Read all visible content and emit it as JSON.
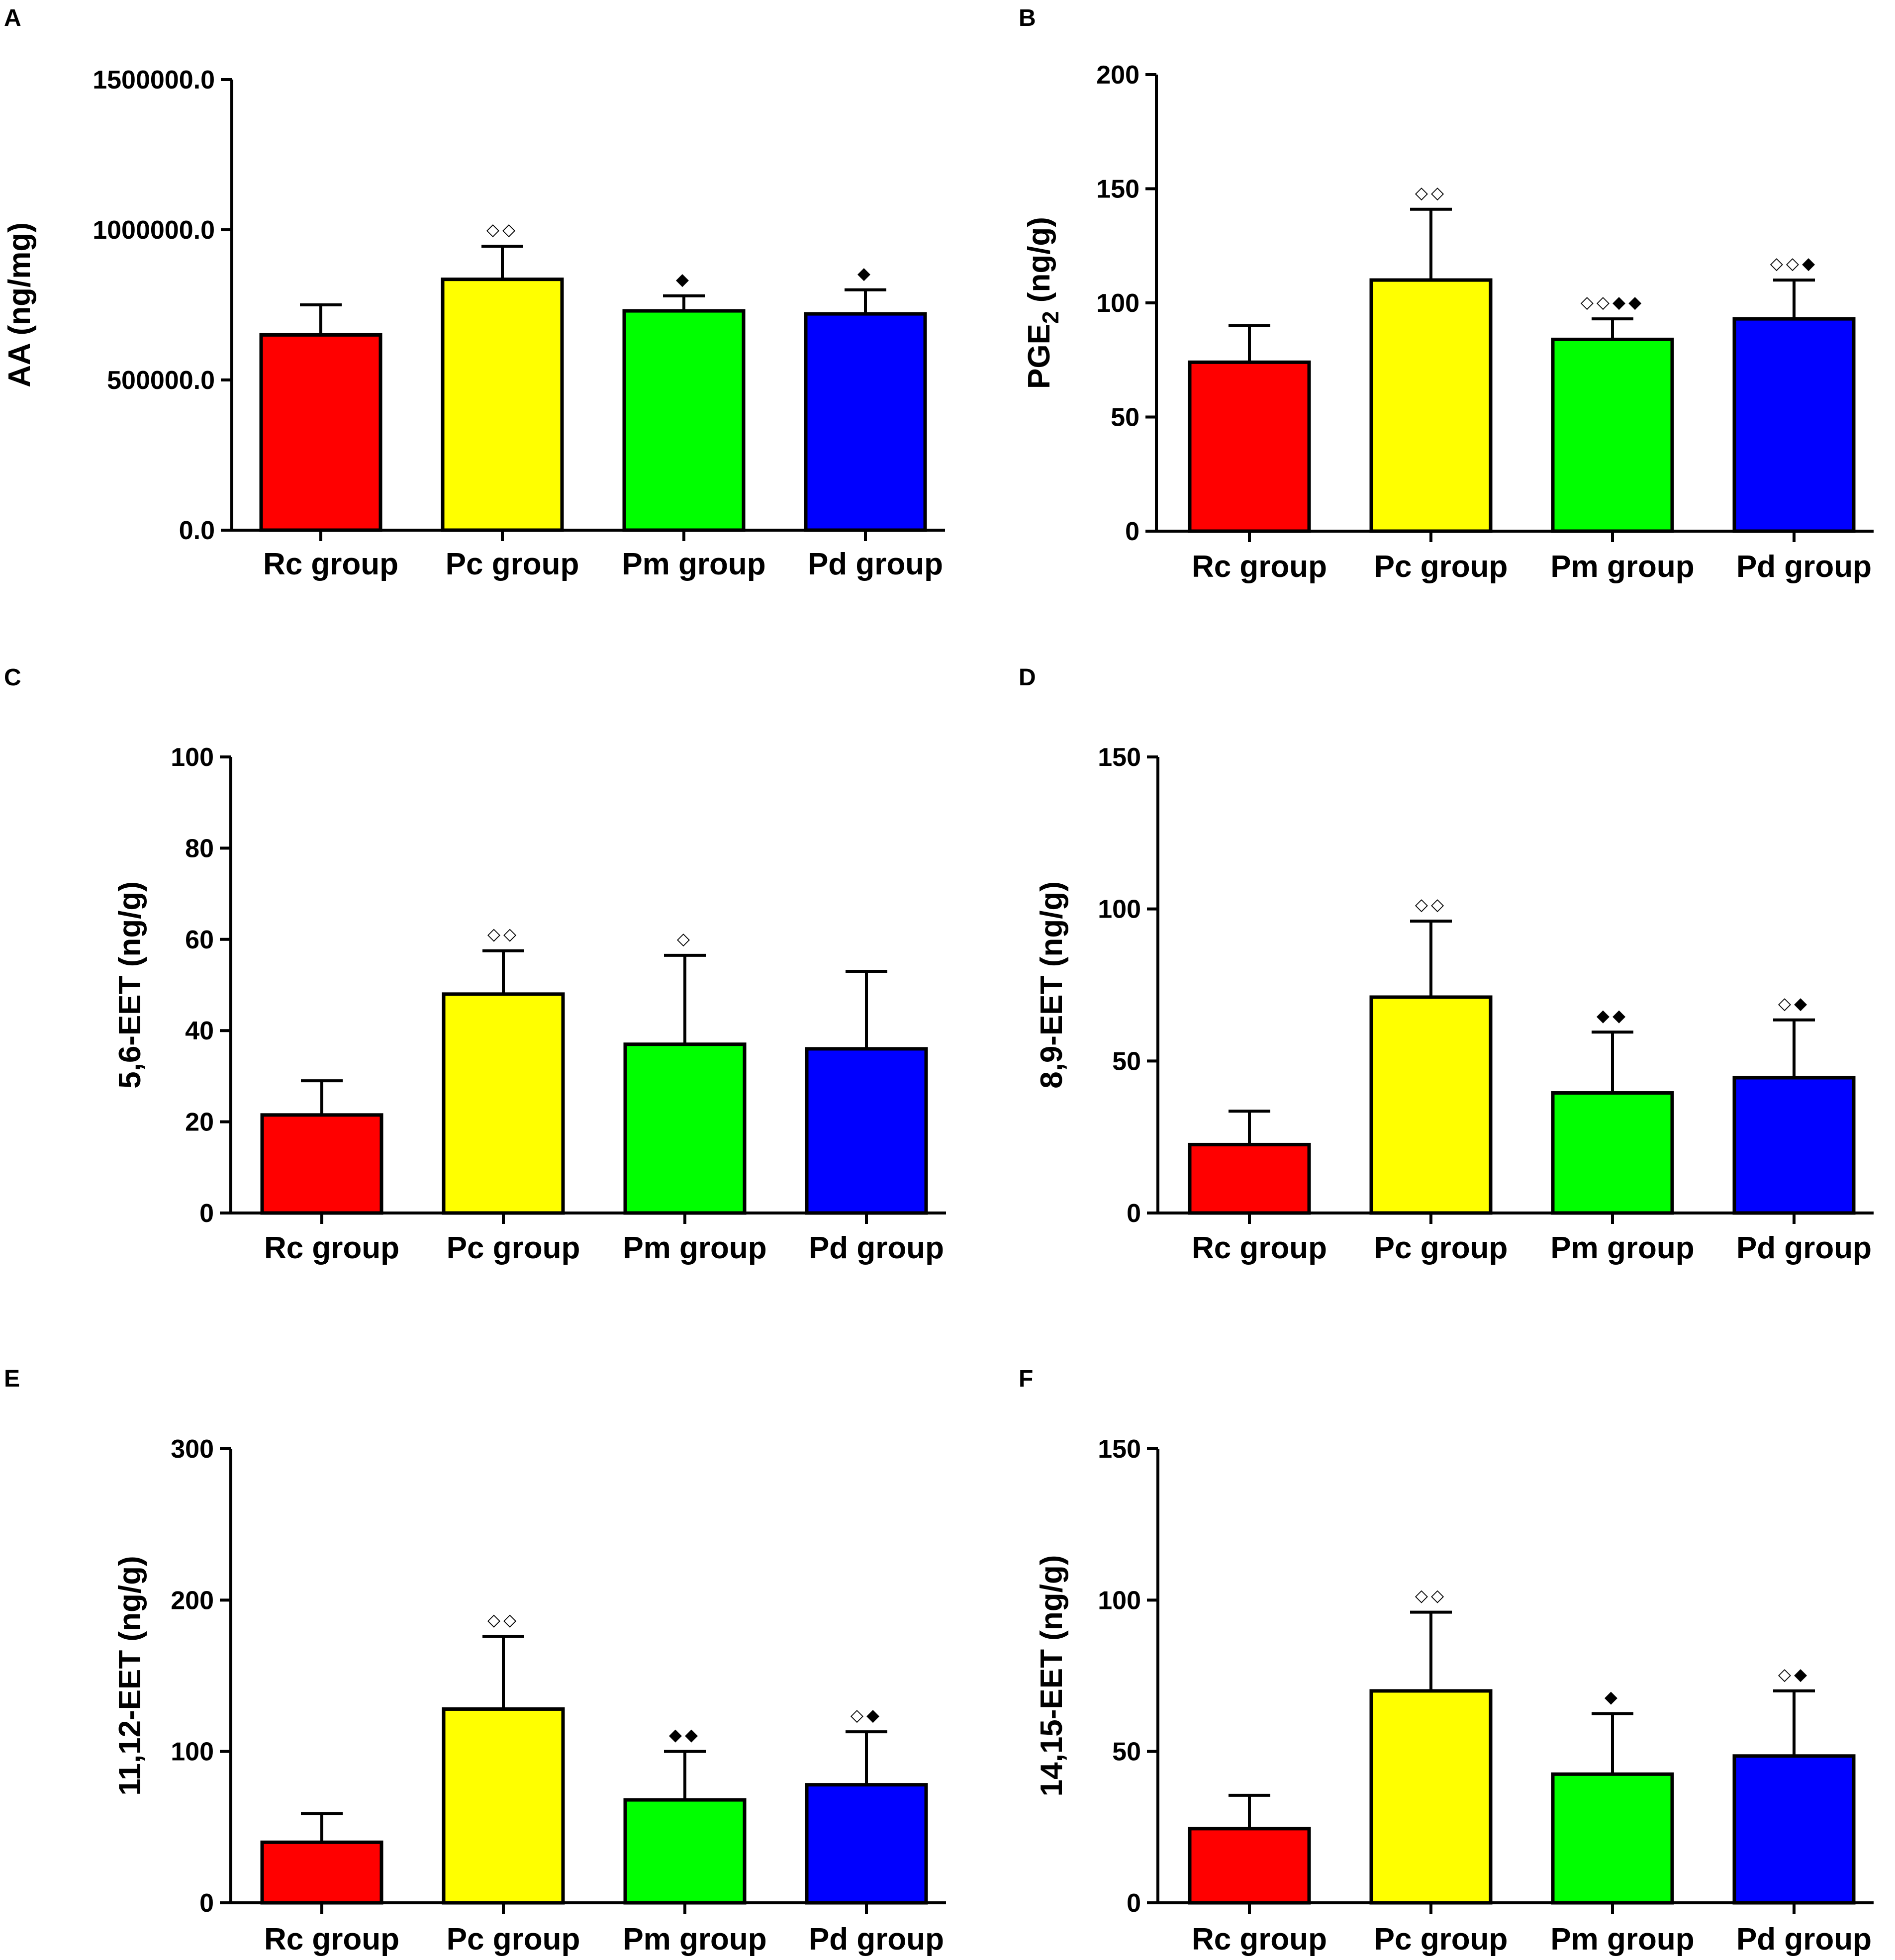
{
  "chart_data": [
    {
      "panel": "A",
      "type": "bar",
      "ylabel": "AA (ng/mg)",
      "ylabel_sub": "",
      "ylim": [
        0,
        1500000
      ],
      "yticks": [
        0,
        500000,
        1000000,
        1500000
      ],
      "ytick_labels": [
        "0.0",
        "500000.0",
        "1000000.0",
        "1500000.0"
      ],
      "categories": [
        "Rc group",
        "Pc group",
        "Pm group",
        "Pd group"
      ],
      "colors": [
        "#ff0000",
        "#ffff00",
        "#00ff00",
        "#0000ff"
      ],
      "values": [
        650000,
        835000,
        730000,
        720000
      ],
      "errors": [
        100000,
        110000,
        50000,
        80000
      ],
      "markers": [
        "",
        "◇◇",
        "◆",
        "◆"
      ]
    },
    {
      "panel": "B",
      "type": "bar",
      "ylabel": "PGE",
      "ylabel_sub": "2",
      "ylabel_suffix": " (ng/g)",
      "ylim": [
        0,
        200
      ],
      "yticks": [
        0,
        50,
        100,
        150,
        200
      ],
      "ytick_labels": [
        "0",
        "50",
        "100",
        "150",
        "200"
      ],
      "categories": [
        "Rc group",
        "Pc group",
        "Pm group",
        "Pd group"
      ],
      "colors": [
        "#ff0000",
        "#ffff00",
        "#00ff00",
        "#0000ff"
      ],
      "values": [
        74,
        110,
        84,
        93
      ],
      "errors": [
        16,
        31,
        9,
        17
      ],
      "markers": [
        "",
        "◇◇",
        "◇◇◆◆",
        "◇◇◆"
      ]
    },
    {
      "panel": "C",
      "type": "bar",
      "ylabel": "5,6-EET (ng/g)",
      "ylabel_sub": "",
      "ylim": [
        0,
        100
      ],
      "yticks": [
        0,
        20,
        40,
        60,
        80,
        100
      ],
      "ytick_labels": [
        "0",
        "20",
        "40",
        "60",
        "80",
        "100"
      ],
      "categories": [
        "Rc group",
        "Pc group",
        "Pm group",
        "Pd group"
      ],
      "colors": [
        "#ff0000",
        "#ffff00",
        "#00ff00",
        "#0000ff"
      ],
      "values": [
        21.5,
        48,
        37,
        36
      ],
      "errors": [
        7.5,
        9.5,
        19.5,
        17
      ],
      "markers": [
        "",
        "◇◇",
        "◇",
        ""
      ]
    },
    {
      "panel": "D",
      "type": "bar",
      "ylabel": "8,9-EET (ng/g)",
      "ylabel_sub": "",
      "ylim": [
        0,
        150
      ],
      "yticks": [
        0,
        50,
        100,
        150
      ],
      "ytick_labels": [
        "0",
        "50",
        "100",
        "150"
      ],
      "categories": [
        "Rc group",
        "Pc group",
        "Pm group",
        "Pd group"
      ],
      "colors": [
        "#ff0000",
        "#ffff00",
        "#00ff00",
        "#0000ff"
      ],
      "values": [
        22.5,
        71,
        39.5,
        44.5
      ],
      "errors": [
        11,
        25,
        20,
        19
      ],
      "markers": [
        "",
        "◇◇",
        "◆◆",
        "◇◆"
      ]
    },
    {
      "panel": "E",
      "type": "bar",
      "ylabel": "11,12-EET (ng/g)",
      "ylabel_sub": "",
      "ylim": [
        0,
        300
      ],
      "yticks": [
        0,
        100,
        200,
        300
      ],
      "ytick_labels": [
        "0",
        "100",
        "200",
        "300"
      ],
      "categories": [
        "Rc group",
        "Pc group",
        "Pm group",
        "Pd group"
      ],
      "colors": [
        "#ff0000",
        "#ffff00",
        "#00ff00",
        "#0000ff"
      ],
      "values": [
        40,
        128,
        68,
        78
      ],
      "errors": [
        19,
        48,
        32,
        35
      ],
      "markers": [
        "",
        "◇◇",
        "◆◆",
        "◇◆"
      ]
    },
    {
      "panel": "F",
      "type": "bar",
      "ylabel": "14,15-EET (ng/g)",
      "ylabel_sub": "",
      "ylim": [
        0,
        150
      ],
      "yticks": [
        0,
        50,
        100,
        150
      ],
      "ytick_labels": [
        "0",
        "50",
        "100",
        "150"
      ],
      "categories": [
        "Rc group",
        "Pc group",
        "Pm group",
        "Pd group"
      ],
      "colors": [
        "#ff0000",
        "#ffff00",
        "#00ff00",
        "#0000ff"
      ],
      "values": [
        24.5,
        70,
        42.5,
        48.5
      ],
      "errors": [
        11,
        26,
        20,
        21.5
      ],
      "markers": [
        "",
        "◇◇",
        "◆",
        "◇◆"
      ]
    }
  ]
}
